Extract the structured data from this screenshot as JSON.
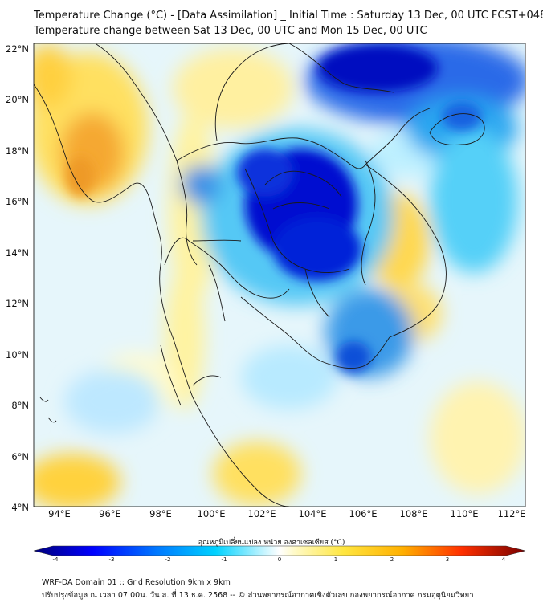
{
  "header": {
    "title_line1": "Temperature Change (°C) - [Data Assimilation] _ Initial Time : Saturday 13 Dec, 00 UTC FCST+048",
    "title_line2": "Temperature change between Sat 13 Dec, 00 UTC and Mon 15 Dec, 00 UTC"
  },
  "axes": {
    "lat_labels": [
      "22°N",
      "20°N",
      "18°N",
      "16°N",
      "14°N",
      "12°N",
      "10°N",
      "8°N",
      "6°N",
      "4°N"
    ],
    "lon_labels": [
      "94°E",
      "96°E",
      "98°E",
      "100°E",
      "102°E",
      "104°E",
      "106°E",
      "108°E",
      "110°E",
      "112°E"
    ]
  },
  "colorbar": {
    "label": "อุณหภูมิเปลี่ยนแปลง หน่วย องศาเซลเซียส (°C)",
    "ticks": [
      "-4",
      "-3",
      "-2",
      "-1",
      "0",
      "1",
      "2",
      "3",
      "4"
    ],
    "min": -4,
    "max": 4
  },
  "footer": {
    "line1": "WRF-DA Domain 01 :: Grid Resolution 9km x 9km",
    "line2": "ปรับปรุงข้อมูล ณ เวลา 07:00น. วัน ส. ที่ 13 ธ.ค. 2568 -- © ส่วนพยากรณ์อากาศเชิงตัวเลข กองพยากรณ์อากาศ กรมอุตุนิยมวิทยา"
  },
  "colors": {
    "strong_cool": "#0010c8",
    "cool": "#1aa0f0",
    "slight_cool": "#9be4ff",
    "neutral": "#f4f8f0",
    "slight_warm": "#fff3a0",
    "warm": "#ffd23c",
    "strong_warm": "#f5a021"
  }
}
